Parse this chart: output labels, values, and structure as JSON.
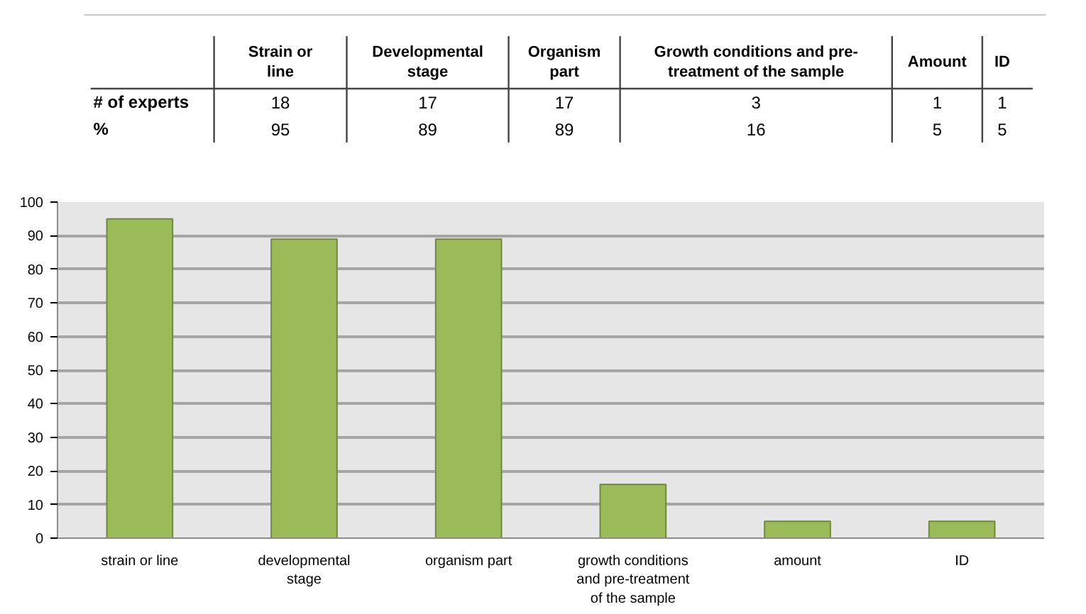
{
  "chart_data": [
    {
      "type": "other",
      "categories": [
        "Strain or line",
        "Developmental stage",
        "Organism part",
        "Growth conditions and pre-treatment of the sample",
        "Amount",
        "ID"
      ],
      "series": [
        {
          "name": "# of experts",
          "values": [
            18,
            17,
            17,
            3,
            1,
            1
          ]
        },
        {
          "name": "%",
          "values": [
            95,
            89,
            89,
            16,
            5,
            5
          ]
        }
      ],
      "data_labels": true
    },
    {
      "type": "bar",
      "categories": [
        "strain or line",
        "developmental stage",
        "organism part",
        "growth conditions and pre-treatment of the sample",
        "amount",
        "ID"
      ],
      "values": [
        95,
        89,
        89,
        16,
        5,
        5
      ],
      "color": "#9bbb59",
      "ylim": [
        0,
        100
      ],
      "yticks": [
        0,
        10,
        20,
        30,
        40,
        50,
        60,
        70,
        80,
        90,
        100
      ],
      "grid": "y"
    }
  ]
}
